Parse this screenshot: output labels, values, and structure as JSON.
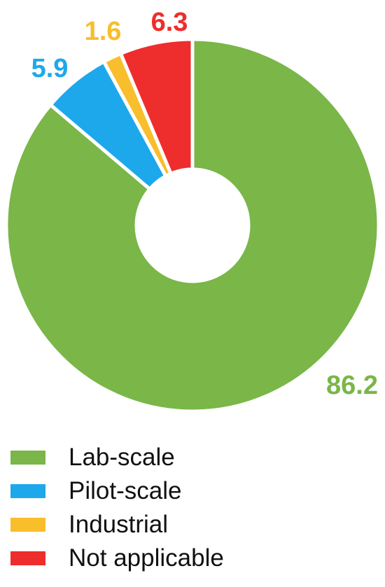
{
  "chart_data": {
    "type": "pie",
    "donut": true,
    "categories": [
      "Lab-scale",
      "Pilot-scale",
      "Industrial",
      "Not applicable"
    ],
    "values": [
      86.2,
      5.9,
      1.6,
      6.3
    ],
    "data_labels": [
      "86.2",
      "5.9",
      "1.6",
      "6.3"
    ],
    "colors": [
      "#7ab648",
      "#1ea8ec",
      "#f9be2c",
      "#ee2d2d"
    ],
    "start_angle_deg": 0,
    "direction": "clockwise",
    "legend_position": "bottom",
    "title": ""
  },
  "legend": {
    "items": [
      {
        "label": "Lab-scale",
        "color": "#7ab648"
      },
      {
        "label": "Pilot-scale",
        "color": "#1ea8ec"
      },
      {
        "label": "Industrial",
        "color": "#f9be2c"
      },
      {
        "label": "Not applicable",
        "color": "#ee2d2d"
      }
    ]
  }
}
